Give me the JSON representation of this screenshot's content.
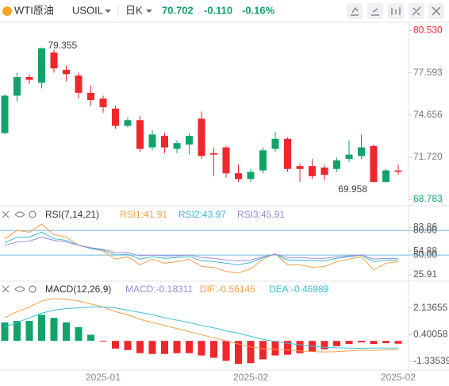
{
  "header": {
    "name": "WTI原油",
    "symbol": "USOIL",
    "period": "日K",
    "price": "70.702",
    "change": "-0.110",
    "change_pct": "-0.16%"
  },
  "chart_data": [
    {
      "type": "candlestick",
      "up_color": "#12a36b",
      "down_color": "#f0262d",
      "ylim": [
        68.4,
        81.0
      ],
      "yticks": [
        {
          "value": 80.53,
          "label": "80.530"
        },
        77.593,
        74.656,
        {
          "value": 71.72,
          "label": "71.720"
        },
        68.783
      ],
      "max_label": "79.355",
      "min_label": "69.958",
      "categories": [
        null,
        null,
        null,
        null,
        null,
        null,
        null,
        null,
        "2025-01",
        null,
        null,
        null,
        null,
        null,
        null,
        null,
        null,
        null,
        null,
        null,
        "2025-02",
        null,
        null,
        null,
        null,
        null,
        null,
        null,
        null,
        null,
        null,
        null,
        "2025-02"
      ],
      "candles": [
        {
          "open": 73.4,
          "high": 76.1,
          "low": 73.3,
          "close": 76.0
        },
        {
          "open": 76.0,
          "high": 77.6,
          "low": 75.6,
          "close": 77.3
        },
        {
          "open": 77.3,
          "high": 77.5,
          "low": 76.8,
          "close": 77.1
        },
        {
          "open": 76.9,
          "high": 79.355,
          "low": 76.5,
          "close": 79.3
        },
        {
          "open": 79.0,
          "high": 79.2,
          "low": 77.6,
          "close": 77.9
        },
        {
          "open": 77.8,
          "high": 78.1,
          "low": 77.0,
          "close": 77.5
        },
        {
          "open": 77.4,
          "high": 77.6,
          "low": 75.8,
          "close": 76.2
        },
        {
          "open": 76.2,
          "high": 76.7,
          "low": 75.3,
          "close": 75.7
        },
        {
          "open": 75.8,
          "high": 76.0,
          "low": 74.8,
          "close": 75.2
        },
        {
          "open": 75.1,
          "high": 75.3,
          "low": 73.7,
          "close": 73.9
        },
        {
          "open": 73.9,
          "high": 74.5,
          "low": 73.8,
          "close": 74.3
        },
        {
          "open": 74.3,
          "high": 74.6,
          "low": 72.1,
          "close": 72.3
        },
        {
          "open": 72.4,
          "high": 73.6,
          "low": 72.2,
          "close": 73.3
        },
        {
          "open": 73.2,
          "high": 73.4,
          "low": 72.0,
          "close": 72.4
        },
        {
          "open": 72.3,
          "high": 72.9,
          "low": 72.0,
          "close": 72.7
        },
        {
          "open": 72.6,
          "high": 73.4,
          "low": 71.9,
          "close": 73.2
        },
        {
          "open": 74.4,
          "high": 74.9,
          "low": 71.6,
          "close": 71.8
        },
        {
          "open": 72.0,
          "high": 72.4,
          "low": 70.4,
          "close": 71.9
        },
        {
          "open": 72.4,
          "high": 72.5,
          "low": 70.3,
          "close": 70.6
        },
        {
          "open": 70.6,
          "high": 71.2,
          "low": 70.0,
          "close": 70.2
        },
        {
          "open": 70.2,
          "high": 70.9,
          "low": 70.0,
          "close": 70.7
        },
        {
          "open": 70.8,
          "high": 72.4,
          "low": 70.6,
          "close": 72.2
        },
        {
          "open": 72.3,
          "high": 73.5,
          "low": 72.1,
          "close": 73.0
        },
        {
          "open": 73.0,
          "high": 73.1,
          "low": 70.7,
          "close": 70.9
        },
        {
          "open": 71.1,
          "high": 71.3,
          "low": 70.0,
          "close": 70.9
        },
        {
          "open": 71.1,
          "high": 71.6,
          "low": 70.2,
          "close": 70.4
        },
        {
          "open": 71.0,
          "high": 71.2,
          "low": 70.1,
          "close": 70.5
        },
        {
          "open": 70.9,
          "high": 71.7,
          "low": 70.7,
          "close": 71.5
        },
        {
          "open": 71.6,
          "high": 72.9,
          "low": 71.4,
          "close": 71.9
        },
        {
          "open": 71.8,
          "high": 73.3,
          "low": 71.6,
          "close": 72.4
        },
        {
          "open": 72.5,
          "high": 72.6,
          "low": 69.958,
          "close": 70.0
        },
        {
          "open": 70.0,
          "high": 70.9,
          "low": 69.958,
          "close": 70.8
        },
        {
          "open": 70.8,
          "high": 71.2,
          "low": 70.5,
          "close": 70.702
        }
      ]
    },
    {
      "type": "line",
      "title": "RSI(7,14,21)",
      "ylim": [
        20,
        90
      ],
      "yticks": [
        {
          "value": 80,
          "label": "80.00"
        },
        83.86,
        54.88,
        {
          "value": 50,
          "label": "50.00"
        },
        25.91
      ],
      "ref_lines": [
        80,
        50
      ],
      "ref_color": "#6fb6e0",
      "series": [
        {
          "name": "RSI1:41.91",
          "color": "#f5a04a",
          "values": [
            70,
            80,
            78,
            88,
            75,
            72,
            62,
            58,
            55,
            45,
            48,
            38,
            45,
            40,
            42,
            45,
            36,
            35,
            30,
            28,
            33,
            45,
            52,
            38,
            38,
            35,
            36,
            42,
            45,
            48,
            32,
            40,
            41.91
          ]
        },
        {
          "name": "RSI2:43.97",
          "color": "#3db8d4",
          "values": [
            65,
            72,
            72,
            78,
            70,
            68,
            62,
            58,
            56,
            50,
            51,
            45,
            48,
            46,
            47,
            48,
            43,
            42,
            40,
            38,
            41,
            47,
            51,
            44,
            44,
            43,
            43,
            46,
            48,
            50,
            42,
            44,
            43.97
          ]
        },
        {
          "name": "RSI3:45.91",
          "color": "#a089d6",
          "values": [
            62,
            66,
            67,
            72,
            68,
            66,
            62,
            59,
            57,
            53,
            53,
            49,
            50,
            49,
            49,
            50,
            47,
            46,
            44,
            43,
            44,
            48,
            51,
            47,
            47,
            46,
            46,
            48,
            49,
            50,
            45,
            46,
            45.91
          ]
        }
      ]
    },
    {
      "type": "combo",
      "title": "MACD(12,26,9)",
      "ylim": [
        -1.85,
        2.8
      ],
      "yticks": [
        2.13655,
        0.40058,
        -1.33539
      ],
      "series": [
        {
          "name": "MACD:-0.18311",
          "kind": "bar",
          "color": "#a089d6",
          "up_color": "#12a36b",
          "down_color": "#f0262d",
          "values": [
            1.2,
            1.3,
            1.3,
            1.7,
            1.5,
            1.2,
            0.9,
            0.4,
            -0.05,
            -0.5,
            -0.6,
            -0.8,
            -0.85,
            -0.85,
            -0.8,
            -0.8,
            -0.95,
            -1.1,
            -1.3,
            -1.5,
            -1.45,
            -1.2,
            -0.95,
            -0.9,
            -0.8,
            -0.7,
            -0.55,
            -0.35,
            -0.2,
            -0.1,
            -0.2,
            -0.15,
            -0.18311
          ]
        },
        {
          "name": "DIF:-0.56145",
          "kind": "line",
          "color": "#f5a04a",
          "values": [
            1.5,
            1.9,
            2.2,
            2.6,
            2.75,
            2.7,
            2.6,
            2.4,
            2.2,
            1.9,
            1.7,
            1.4,
            1.2,
            1.0,
            0.8,
            0.6,
            0.4,
            0.2,
            0.0,
            -0.2,
            -0.4,
            -0.5,
            -0.55,
            -0.6,
            -0.65,
            -0.7,
            -0.72,
            -0.7,
            -0.65,
            -0.6,
            -0.62,
            -0.58,
            -0.56145
          ]
        },
        {
          "name": "DEA:-0.46989",
          "kind": "line",
          "color": "#3cc0d8",
          "values": [
            0.9,
            1.2,
            1.5,
            1.8,
            2.0,
            2.1,
            2.15,
            2.2,
            2.2,
            2.15,
            2.0,
            1.85,
            1.7,
            1.5,
            1.35,
            1.2,
            1.0,
            0.85,
            0.65,
            0.5,
            0.3,
            0.1,
            -0.05,
            -0.15,
            -0.25,
            -0.35,
            -0.42,
            -0.45,
            -0.47,
            -0.48,
            -0.46,
            -0.46,
            -0.46989
          ]
        }
      ]
    }
  ]
}
